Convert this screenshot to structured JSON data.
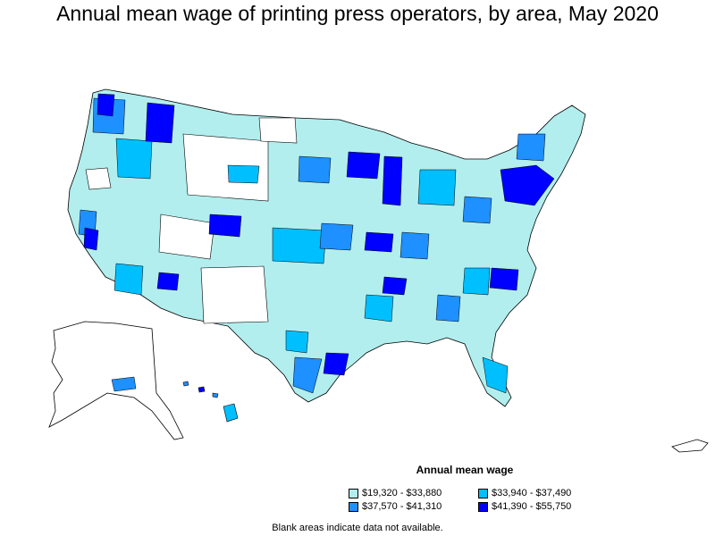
{
  "title": "Annual mean wage of printing press operators, by area, May 2020",
  "legend": {
    "title": "Annual mean wage",
    "items": [
      {
        "label": "$19,320 - $33,880",
        "color": "#b2eeee"
      },
      {
        "label": "$33,940 - $37,490",
        "color": "#00bfff"
      },
      {
        "label": "$37,570 - $41,310",
        "color": "#1e90ff"
      },
      {
        "label": "$41,390 - $55,750",
        "color": "#0000ff"
      }
    ]
  },
  "note": "Blank areas indicate data not available."
}
